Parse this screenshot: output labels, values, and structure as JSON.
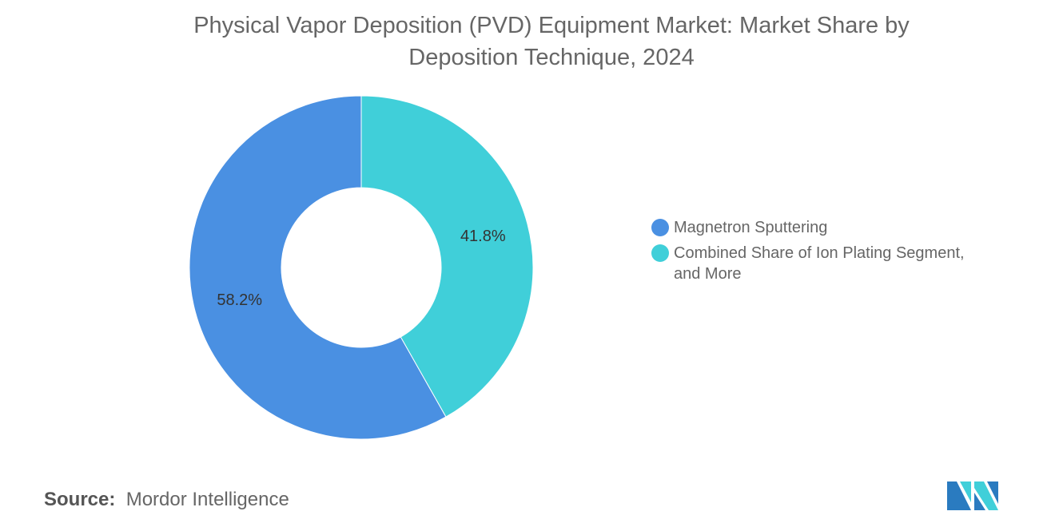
{
  "chart_data": {
    "type": "pie",
    "variant": "donut",
    "title_lines": [
      "Physical Vapor Deposition (PVD) Equipment Market: Market Share by",
      "Deposition Technique, 2024"
    ],
    "slices": [
      {
        "name": "Combined Share of Ion Plating Segment, and More",
        "value": 41.8,
        "label": "41.8%",
        "color": "#40cfd9"
      },
      {
        "name": "Magnetron Sputtering",
        "value": 58.2,
        "label": "58.2%",
        "color": "#4a90e2"
      }
    ],
    "legend": {
      "placement": "right",
      "items": [
        {
          "label_lines": [
            "Magnetron Sputtering"
          ],
          "color": "#4a90e2"
        },
        {
          "label_lines": [
            "Combined Share of Ion Plating Segment,",
            "and More"
          ],
          "color": "#40cfd9"
        }
      ]
    }
  },
  "source": {
    "label": "Source:",
    "value": "Mordor Intelligence"
  },
  "logo": {
    "name": "Mordor Intelligence logo",
    "colors": [
      "#2a7bc0",
      "#40cfd9"
    ]
  }
}
